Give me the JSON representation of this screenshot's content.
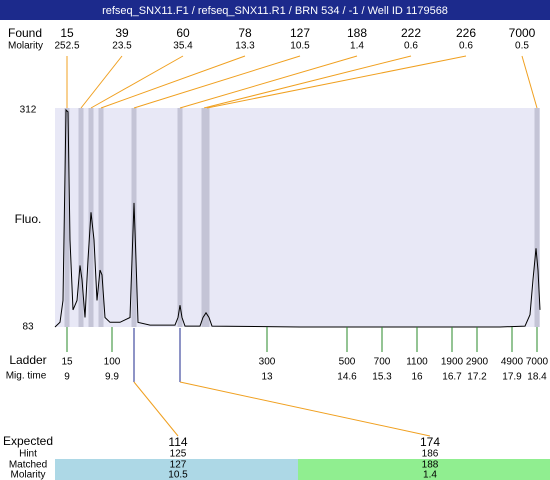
{
  "title": "refseq_SNX11.F1 / refseq_SNX11.R1 / BRN 534 / -1 / Well ID 1179568",
  "found": {
    "label": "Found",
    "molarity_label": "Molarity",
    "peaks": [
      {
        "size": 15,
        "molarity": 252.5
      },
      {
        "size": 39,
        "molarity": 23.5
      },
      {
        "size": 60,
        "molarity": 35.4
      },
      {
        "size": 78,
        "molarity": 13.3
      },
      {
        "size": 127,
        "molarity": 10.5
      },
      {
        "size": 188,
        "molarity": 1.4
      },
      {
        "size": 222,
        "molarity": 0.6
      },
      {
        "size": 226,
        "molarity": 0.6
      },
      {
        "size": 7000,
        "molarity": 0.5
      }
    ]
  },
  "axis": {
    "y_label": "Fluo.",
    "ymax": 312,
    "ymin": 83
  },
  "trace": {
    "x": [
      8.76,
      8.86,
      8.92,
      8.98,
      9.02,
      9.06,
      9.12,
      9.2,
      9.26,
      9.3,
      9.36,
      9.42,
      9.48,
      9.54,
      9.6,
      9.66,
      9.7,
      9.76,
      9.86,
      10.06,
      10.26,
      10.3,
      10.34,
      10.38,
      10.42,
      10.66,
      11.16,
      11.22,
      11.26,
      11.3,
      11.36,
      11.66,
      11.72,
      11.78,
      11.84,
      11.9,
      13.66,
      17.66,
      18.16,
      18.26,
      18.32,
      18.38,
      18.42,
      18.46
    ],
    "y": [
      83,
      88,
      111,
      312,
      310,
      175,
      101,
      111,
      148,
      133,
      93,
      154,
      204,
      175,
      111,
      143,
      138,
      93,
      88,
      88,
      93,
      154,
      214,
      154,
      88,
      85,
      85,
      93,
      106,
      93,
      84,
      84,
      93,
      98,
      93,
      84,
      83,
      83,
      84,
      96,
      133,
      166,
      143,
      101
    ]
  },
  "ladder": {
    "label": "Ladder",
    "time_label": "Mig. time",
    "bands": [
      {
        "size": 15,
        "time": 9
      },
      {
        "size": 100,
        "time": 9.9
      },
      {
        "size": 300,
        "time": 13
      },
      {
        "size": 500,
        "time": 14.6
      },
      {
        "size": 700,
        "time": 15.3
      },
      {
        "size": 1100,
        "time": 16
      },
      {
        "size": 1900,
        "time": 16.7
      },
      {
        "size": 2900,
        "time": 17.2
      },
      {
        "size": 4900,
        "time": 17.9
      },
      {
        "size": 7000,
        "time": 18.4
      }
    ]
  },
  "expected": {
    "labels": {
      "expected": "Expected",
      "hint": "Hint",
      "matched": "Matched",
      "molarity": "Molarity"
    },
    "columns": [
      {
        "expected": 114,
        "hint": 125,
        "matched": 127,
        "molarity": 10.5
      },
      {
        "expected": 174,
        "hint": 186,
        "matched": 188,
        "molarity": 1.4
      }
    ]
  }
}
